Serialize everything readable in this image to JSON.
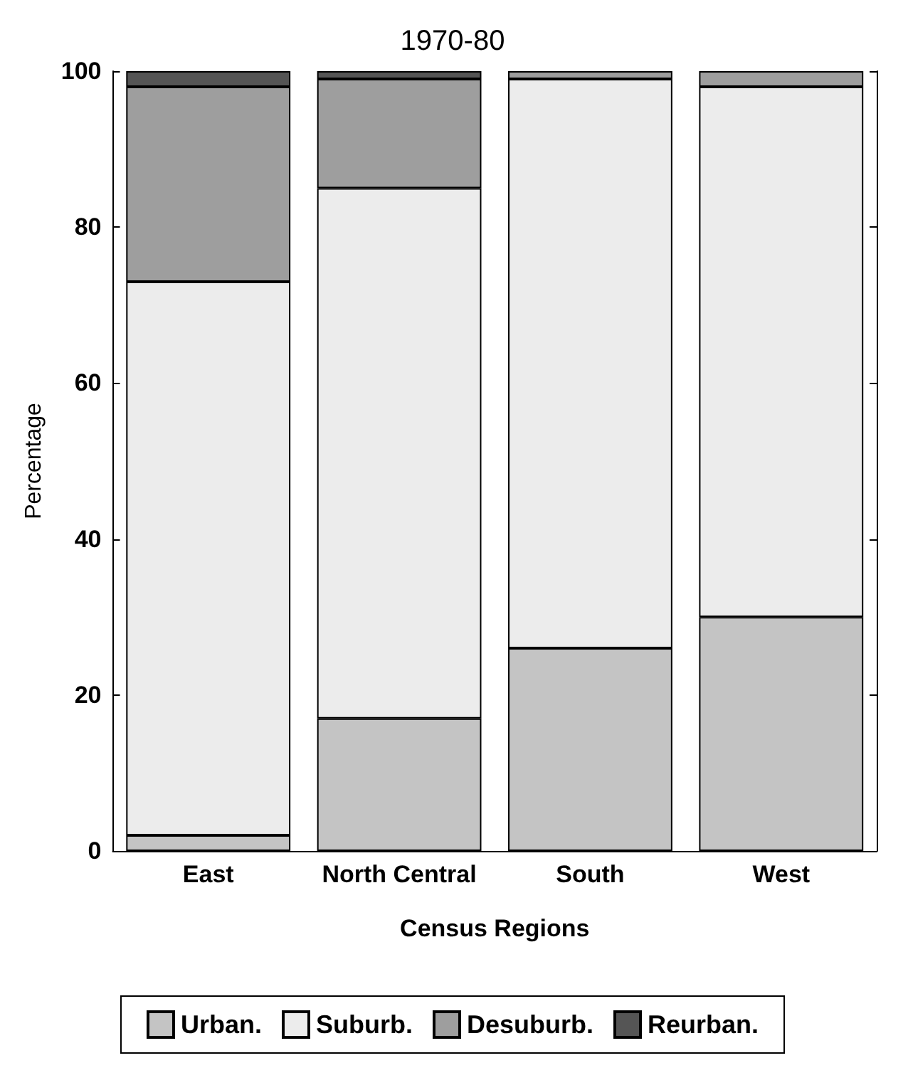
{
  "chart_data": {
    "type": "bar",
    "title": "1970-80",
    "xlabel": "Census Regions",
    "ylabel": "Percentage",
    "categories": [
      "East",
      "North Central",
      "South",
      "West"
    ],
    "stacked": true,
    "series": [
      {
        "name": "Urban.",
        "color": "#c4c4c4",
        "values": [
          2,
          17,
          26,
          30
        ]
      },
      {
        "name": "Suburb.",
        "color": "#ececec",
        "values": [
          71,
          68,
          73,
          68
        ]
      },
      {
        "name": "Desuburb.",
        "color": "#9e9e9e",
        "values": [
          25,
          14,
          1,
          2
        ]
      },
      {
        "name": "Reurban.",
        "color": "#555555",
        "values": [
          2,
          1,
          0,
          0
        ]
      }
    ],
    "ylim": [
      0,
      100
    ],
    "yticks": [
      0,
      20,
      40,
      60,
      80,
      100
    ],
    "grid": false,
    "legend": "bottom"
  }
}
